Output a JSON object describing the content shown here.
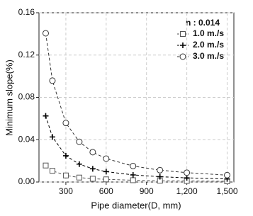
{
  "chart_data": {
    "type": "line",
    "x_label": "Pipe diameter(D, mm)",
    "y_label": "Minimum slope(%)",
    "legend_title": "n : 0.014",
    "legend_position": "upper right",
    "grid": true,
    "x": [
      150,
      200,
      300,
      400,
      500,
      600,
      800,
      1000,
      1200,
      1500
    ],
    "series": [
      {
        "name": "1.0 m./s",
        "color": "#555555",
        "marker": "square",
        "values": [
          0.0156,
          0.0106,
          0.0062,
          0.0042,
          0.0031,
          0.0025,
          0.0017,
          0.0012,
          0.001,
          0.0007
        ]
      },
      {
        "name": "2.0 m./s",
        "color": "#000000",
        "marker": "plus",
        "values": [
          0.0625,
          0.0426,
          0.0248,
          0.0169,
          0.0125,
          0.0098,
          0.0067,
          0.005,
          0.0039,
          0.0029
        ]
      },
      {
        "name": "3.0 m./s",
        "color": "#333333",
        "marker": "circle",
        "values": [
          0.1406,
          0.0958,
          0.0558,
          0.038,
          0.0282,
          0.0221,
          0.0151,
          0.0112,
          0.0088,
          0.0065
        ]
      }
    ],
    "xlim": [
      100,
      1550
    ],
    "xticks": [
      300,
      600,
      900,
      {
        "value": 1200,
        "label": "1,200"
      },
      {
        "value": 1500,
        "label": "1,500"
      }
    ],
    "ylim": [
      0,
      0.16
    ],
    "yticks": [
      {
        "value": 0,
        "label": "0.00"
      },
      {
        "value": 0.04,
        "label": "0.04"
      },
      {
        "value": 0.08,
        "label": "0.08"
      },
      {
        "value": 0.12,
        "label": "0.12"
      },
      {
        "value": 0.16,
        "label": "0.16"
      }
    ]
  }
}
